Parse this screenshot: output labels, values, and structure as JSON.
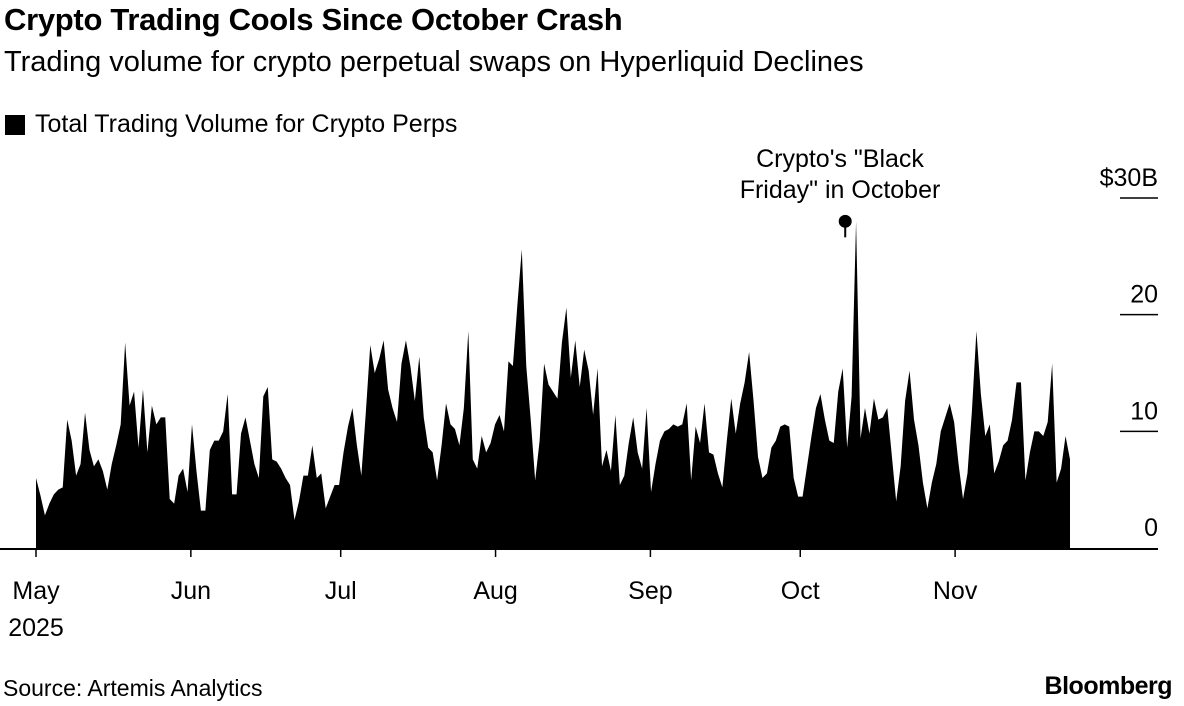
{
  "title": "Crypto Trading Cools Since October Crash",
  "subtitle": "Trading volume for crypto perpetual swaps on Hyperliquid Declines",
  "legend_label": "Total Trading Volume for Crypto Perps",
  "annotation": {
    "line1": "Crypto's \"Black",
    "line2": "Friday\" in October",
    "date": "2025-10-10",
    "value": 28
  },
  "source": "Source: Artemis Analytics",
  "brand": "Bloomberg",
  "chart_data": {
    "type": "area",
    "title": "Crypto Trading Cools Since October Crash",
    "subtitle": "Trading volume for crypto perpetual swaps on Hyperliquid Declines",
    "xlabel": "",
    "ylabel": "",
    "ylim": [
      0,
      30
    ],
    "yticks": [
      {
        "value": 0,
        "label": "0"
      },
      {
        "value": 10,
        "label": "10"
      },
      {
        "value": 20,
        "label": "20"
      },
      {
        "value": 30,
        "label": "$30B"
      }
    ],
    "xticks": [
      {
        "date": "2025-05-01",
        "label": "May",
        "sublabel": "2025"
      },
      {
        "date": "2025-06-01",
        "label": "Jun"
      },
      {
        "date": "2025-07-01",
        "label": "Jul"
      },
      {
        "date": "2025-08-01",
        "label": "Aug"
      },
      {
        "date": "2025-09-01",
        "label": "Sep"
      },
      {
        "date": "2025-10-01",
        "label": "Oct"
      },
      {
        "date": "2025-11-01",
        "label": "Nov"
      }
    ],
    "x_start": "2025-05-01",
    "x_end": "2025-11-24",
    "grid": false,
    "legend": "top-left",
    "colors": {
      "area": "#000000",
      "text": "#000000",
      "background": "#ffffff"
    },
    "series": [
      {
        "name": "Total Trading Volume for Crypto Perps",
        "values": [
          6.0,
          4.5,
          2.8,
          3.8,
          4.6,
          5.0,
          5.2,
          11.0,
          9.2,
          6.2,
          7.2,
          11.6,
          8.4,
          7.0,
          7.6,
          6.6,
          5.0,
          7.2,
          8.8,
          10.6,
          17.6,
          12.2,
          13.4,
          8.6,
          13.6,
          8.2,
          12.2,
          10.6,
          11.2,
          11.2,
          4.2,
          3.8,
          6.2,
          6.8,
          4.8,
          10.6,
          6.6,
          3.2,
          3.2,
          8.4,
          9.2,
          9.2,
          10.0,
          13.2,
          4.6,
          4.6,
          9.8,
          11.2,
          9.2,
          7.2,
          6.0,
          13.0,
          13.8,
          7.6,
          7.4,
          6.8,
          6.0,
          5.4,
          2.4,
          4.0,
          6.2,
          6.2,
          8.8,
          6.0,
          6.4,
          3.4,
          4.4,
          5.4,
          5.4,
          8.2,
          10.4,
          12.0,
          8.8,
          6.2,
          11.6,
          17.4,
          15.0,
          16.2,
          17.8,
          13.6,
          12.0,
          10.8,
          15.8,
          17.8,
          15.6,
          12.6,
          16.4,
          11.2,
          8.6,
          8.2,
          5.8,
          8.8,
          12.4,
          10.6,
          10.2,
          8.8,
          12.0,
          18.6,
          7.6,
          6.8,
          9.6,
          8.2,
          9.0,
          10.6,
          11.4,
          10.0,
          16.0,
          15.6,
          20.8,
          25.6,
          15.6,
          11.0,
          5.8,
          9.2,
          15.8,
          14.0,
          13.4,
          12.8,
          17.6,
          20.6,
          14.6,
          17.8,
          13.8,
          17.0,
          15.2,
          11.4,
          15.4,
          7.0,
          8.4,
          6.6,
          11.4,
          5.4,
          6.2,
          9.0,
          11.2,
          8.2,
          6.8,
          12.0,
          4.8,
          7.2,
          9.2,
          10.0,
          10.2,
          10.6,
          10.4,
          10.6,
          12.4,
          5.8,
          10.4,
          9.0,
          12.4,
          8.2,
          8.0,
          6.4,
          5.2,
          9.2,
          12.8,
          9.8,
          12.4,
          14.2,
          16.8,
          12.6,
          7.8,
          6.0,
          6.4,
          8.6,
          9.2,
          10.4,
          10.6,
          10.4,
          6.0,
          4.4,
          4.4,
          7.0,
          9.6,
          12.0,
          13.2,
          11.0,
          9.2,
          9.0,
          13.4,
          15.4,
          8.6,
          13.0,
          28.0,
          9.4,
          12.0,
          9.8,
          12.8,
          11.0,
          11.2,
          12.0,
          8.0,
          4.0,
          7.0,
          12.6,
          15.2,
          11.0,
          8.8,
          5.6,
          3.4,
          5.6,
          7.2,
          10.0,
          11.2,
          12.4,
          10.8,
          7.2,
          4.2,
          6.4,
          11.8,
          18.6,
          13.2,
          9.6,
          10.6,
          6.4,
          7.4,
          8.8,
          9.2,
          11.0,
          14.2,
          14.2,
          5.8,
          8.2,
          10.0,
          10.0,
          9.6,
          10.8,
          15.8,
          5.6,
          6.8,
          9.6,
          7.6
        ]
      }
    ]
  }
}
